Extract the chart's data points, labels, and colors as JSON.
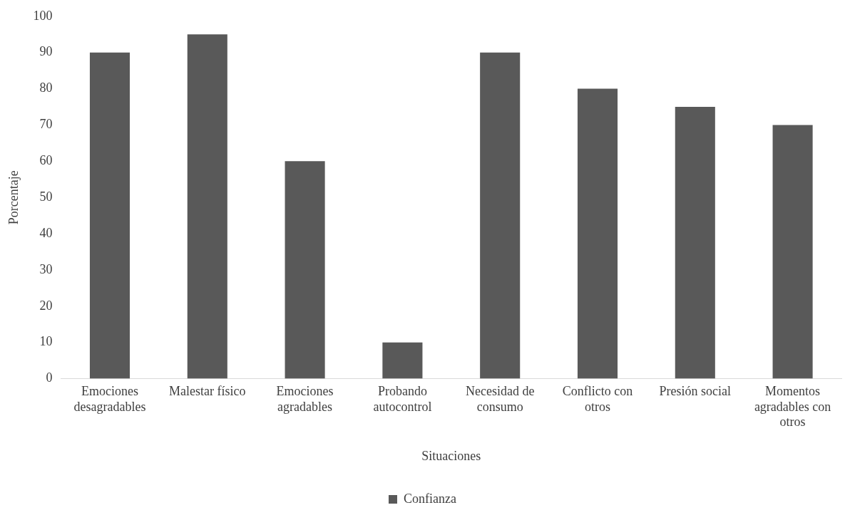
{
  "chart_data": {
    "type": "bar",
    "xlabel": "Situaciones",
    "ylabel": "Porcentaje",
    "categories": [
      "Emociones desagradables",
      "Malestar físico",
      "Emociones agradables",
      "Probando autocontrol",
      "Necesidad de consumo",
      "Conflicto con otros",
      "Presión social",
      "Momentos agradables con otros"
    ],
    "series": [
      {
        "name": "Confianza",
        "color": "#595959",
        "values": [
          90,
          95,
          60,
          10,
          90,
          80,
          75,
          70
        ]
      }
    ],
    "ylim": [
      0,
      100
    ],
    "yticks": [
      0,
      10,
      20,
      30,
      40,
      50,
      60,
      70,
      80,
      90,
      100
    ],
    "grid": false,
    "legend": "bottom"
  }
}
